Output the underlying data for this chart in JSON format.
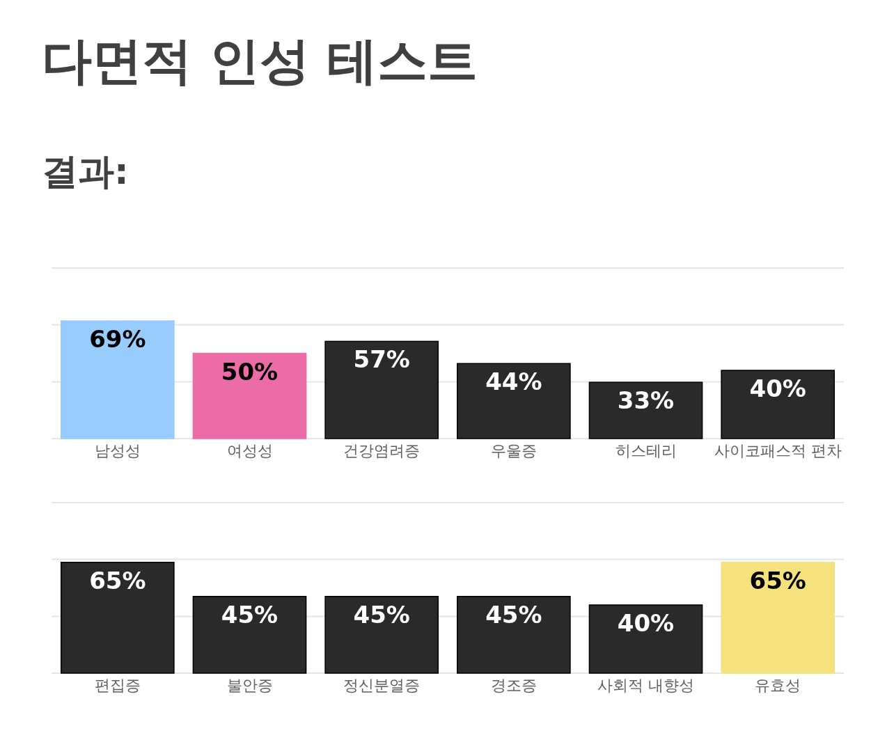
{
  "chart_data": [
    {
      "type": "bar",
      "title": "다면적 인성 테스트",
      "subtitle": "결과:",
      "categories": [
        "남성성",
        "여성성",
        "건강염려증",
        "우울증",
        "히스테리",
        "사이코패스적 편차"
      ],
      "values": [
        69,
        50,
        57,
        44,
        33,
        40
      ],
      "value_labels": [
        "69%",
        "50%",
        "57%",
        "44%",
        "33%",
        "40%"
      ],
      "colors": [
        "#98ccfc",
        "#ec6ca8",
        "#2a2a2a",
        "#2a2a2a",
        "#2a2a2a",
        "#2a2a2a"
      ],
      "ylim": [
        0,
        100
      ],
      "yticks": [
        {
          "value": 33.3,
          "label": null
        },
        {
          "value": 66.7,
          "label": null
        },
        {
          "value": 100,
          "label": null
        }
      ],
      "grid": "y"
    },
    {
      "type": "bar",
      "categories": [
        "편집증",
        "불안증",
        "정신분열증",
        "경조증",
        "사회적 내향성",
        "유효성"
      ],
      "values": [
        65,
        45,
        45,
        45,
        40,
        65
      ],
      "value_labels": [
        "65%",
        "45%",
        "45%",
        "45%",
        "40%",
        "65%"
      ],
      "colors": [
        "#2a2a2a",
        "#2a2a2a",
        "#2a2a2a",
        "#2a2a2a",
        "#2a2a2a",
        "#f6e27c"
      ],
      "ylim": [
        0,
        100
      ],
      "yticks": [
        {
          "value": 33.3,
          "label": null
        },
        {
          "value": 66.7,
          "label": null
        },
        {
          "value": 100,
          "label": null
        }
      ],
      "grid": "y"
    }
  ]
}
